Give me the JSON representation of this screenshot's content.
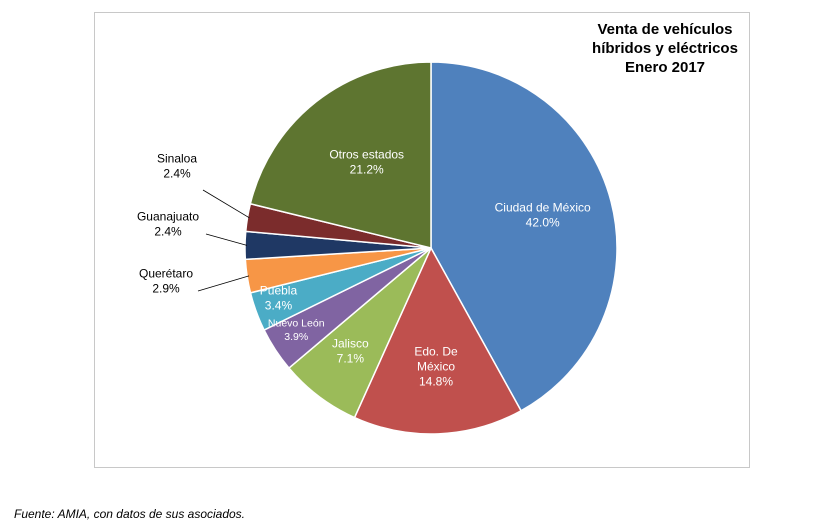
{
  "chart_data": {
    "type": "pie",
    "title": "Venta de vehículos\nhíbridos y eléctricos\nEnero 2017",
    "slices": [
      {
        "label": "Ciudad de México",
        "display_label": "Ciudad de México",
        "value": 42.0,
        "value_text": "42.0%",
        "color": "#4f81bd"
      },
      {
        "label": "Edo. De México",
        "display_label": "Edo. De\nMéxico",
        "value": 14.8,
        "value_text": "14.8%",
        "color": "#c0504d"
      },
      {
        "label": "Jalisco",
        "display_label": "Jalisco",
        "value": 7.1,
        "value_text": "7.1%",
        "color": "#9bbb59"
      },
      {
        "label": "Nuevo León",
        "display_label": "Nuevo León",
        "value": 3.9,
        "value_text": "3.9%",
        "color": "#8064a2"
      },
      {
        "label": "Puebla",
        "display_label": "Puebla",
        "value": 3.4,
        "value_text": "3.4%",
        "color": "#4bacc6"
      },
      {
        "label": "Querétaro",
        "display_label": "Querétaro",
        "value": 2.9,
        "value_text": "2.9%",
        "color": "#f79646"
      },
      {
        "label": "Guanajuato",
        "display_label": "Guanajuato",
        "value": 2.4,
        "value_text": "2.4%",
        "color": "#1f3864"
      },
      {
        "label": "Sinaloa",
        "display_label": "Sinaloa",
        "value": 2.4,
        "value_text": "2.4%",
        "color": "#7b2c2c"
      },
      {
        "label": "Otros estados",
        "display_label": "Otros estados",
        "value": 21.2,
        "value_text": "21.2%",
        "color": "#5e7530"
      }
    ],
    "legend": "none",
    "start_angle": "12 o'clock",
    "direction": "clockwise"
  },
  "source_note": "Fuente: AMIA, con datos de sus asociados."
}
